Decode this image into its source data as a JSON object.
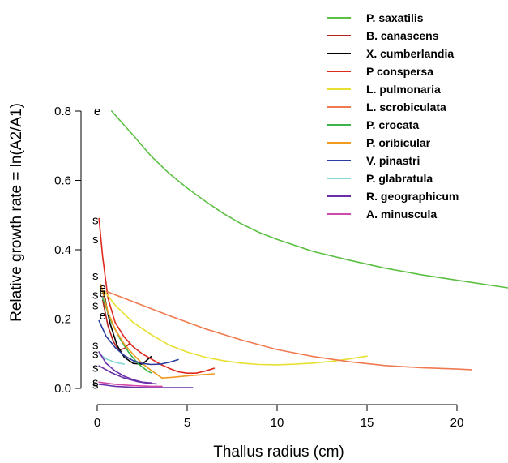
{
  "chart_data": {
    "type": "line",
    "xlabel": "Thallus radius (cm)",
    "ylabel": "Relative growth rate = ln(A2/A1)",
    "xlim": [
      0,
      23
    ],
    "ylim": [
      0,
      0.8
    ],
    "x_ticks": [
      "0",
      "5",
      "10",
      "15",
      "20"
    ],
    "y_ticks": [
      "0.0",
      "0.2",
      "0.4",
      "0.6",
      "0.8"
    ],
    "legend_position": "top-right",
    "grid": false,
    "series": [
      {
        "name": "P. saxatilis",
        "color": "#5cc043",
        "x": [
          0.8,
          2,
          3,
          4,
          5,
          6,
          7,
          8,
          9,
          10,
          12,
          14,
          16,
          18,
          20,
          23
        ],
        "y": [
          0.8,
          0.73,
          0.67,
          0.62,
          0.578,
          0.54,
          0.505,
          0.475,
          0.45,
          0.43,
          0.395,
          0.37,
          0.347,
          0.328,
          0.312,
          0.29
        ]
      },
      {
        "name": "B. canascens",
        "color": "#b22222",
        "x": [
          0.3,
          0.6,
          0.9,
          1.2,
          1.5,
          1.8
        ],
        "y": [
          0.255,
          0.18,
          0.135,
          0.11,
          0.115,
          0.13
        ]
      },
      {
        "name": "X. cumberlandia",
        "color": "#000000",
        "x": [
          0.35,
          0.7,
          1.1,
          1.5,
          2.0,
          2.5,
          3.0
        ],
        "y": [
          0.28,
          0.19,
          0.125,
          0.09,
          0.072,
          0.07,
          0.092
        ]
      },
      {
        "name": "P conspersa",
        "color": "#dd2a1e",
        "x": [
          0.1,
          0.3,
          0.6,
          1.0,
          1.5,
          2.0,
          2.5,
          3.0,
          3.5,
          4.0,
          4.5,
          5.0,
          5.5,
          6.0,
          6.5
        ],
        "y": [
          0.49,
          0.38,
          0.26,
          0.19,
          0.148,
          0.12,
          0.1,
          0.085,
          0.07,
          0.058,
          0.048,
          0.044,
          0.044,
          0.05,
          0.058
        ]
      },
      {
        "name": "L. pulmonaria",
        "color": "#e8e030",
        "x": [
          0.4,
          1,
          2,
          3,
          4,
          5,
          6,
          7,
          8,
          9,
          10,
          11,
          12,
          13,
          14,
          15
        ],
        "y": [
          0.28,
          0.24,
          0.19,
          0.155,
          0.125,
          0.105,
          0.09,
          0.08,
          0.073,
          0.069,
          0.068,
          0.07,
          0.073,
          0.078,
          0.085,
          0.093
        ]
      },
      {
        "name": "L. scrobiculata",
        "color": "#f07a50",
        "x": [
          0.5,
          2,
          4,
          6,
          8,
          10,
          12,
          14,
          16,
          18,
          20,
          20.8
        ],
        "y": [
          0.28,
          0.25,
          0.21,
          0.172,
          0.14,
          0.112,
          0.092,
          0.077,
          0.066,
          0.06,
          0.056,
          0.054
        ]
      },
      {
        "name": "P. crocata",
        "color": "#3cb44b",
        "x": [
          0.3,
          0.8,
          1.3,
          1.8,
          2.3,
          2.8,
          3.0
        ],
        "y": [
          0.26,
          0.19,
          0.14,
          0.1,
          0.07,
          0.05,
          0.045
        ]
      },
      {
        "name": "P. oribicular",
        "color": "#f29a1f",
        "x": [
          0.2,
          0.6,
          1.0,
          1.5,
          2.0,
          2.5,
          3.0,
          3.6,
          4.2,
          5.0,
          6.5
        ],
        "y": [
          0.3,
          0.22,
          0.17,
          0.128,
          0.098,
          0.072,
          0.052,
          0.03,
          0.032,
          0.036,
          0.042
        ]
      },
      {
        "name": "V. pinastri",
        "color": "#2b3d9e",
        "x": [
          0.1,
          0.5,
          1.0,
          1.5,
          2.0,
          2.5,
          3.0,
          3.5,
          4.0,
          4.5
        ],
        "y": [
          0.195,
          0.15,
          0.118,
          0.095,
          0.08,
          0.072,
          0.069,
          0.07,
          0.075,
          0.083
        ]
      },
      {
        "name": "P. glabratula",
        "color": "#80d8d0",
        "x": [
          0.1,
          0.5,
          1.0,
          1.5
        ],
        "y": [
          0.1,
          0.085,
          0.075,
          0.07
        ]
      },
      {
        "name": "R. geographicum",
        "color": "#6a2ea8",
        "x": [
          0.1,
          0.5,
          1.0,
          1.5,
          2.0,
          2.5,
          3.0
        ],
        "y": [
          0.105,
          0.072,
          0.05,
          0.035,
          0.025,
          0.018,
          0.016
        ]
      },
      {
        "name": "R. geographicum",
        "color": "#6a2ea8",
        "legend": false,
        "x": [
          0.1,
          0.8,
          1.5,
          2.2,
          2.8,
          3.3
        ],
        "y": [
          0.065,
          0.045,
          0.03,
          0.02,
          0.015,
          0.013
        ]
      },
      {
        "name": "R. geographicum",
        "color": "#6a2ea8",
        "legend": false,
        "x": [
          0.1,
          1.0,
          2.0,
          3.0,
          4.0,
          5.3
        ],
        "y": [
          0.012,
          0.006,
          0.003,
          0.002,
          0.002,
          0.002
        ]
      },
      {
        "name": "A. minuscula",
        "color": "#d048a8",
        "x": [
          0.1,
          1.0,
          2.0,
          3.0,
          3.6
        ],
        "y": [
          0.018,
          0.012,
          0.008,
          0.006,
          0.006
        ]
      }
    ],
    "markers": [
      {
        "label": "e",
        "x": 0.0,
        "y": 0.8
      },
      {
        "label": "s",
        "x": -0.1,
        "y": 0.485
      },
      {
        "label": "s",
        "x": -0.1,
        "y": 0.43
      },
      {
        "label": "s",
        "x": -0.1,
        "y": 0.325
      },
      {
        "label": "s",
        "x": -0.1,
        "y": 0.27
      },
      {
        "label": "e",
        "x": 0.3,
        "y": 0.29
      },
      {
        "label": "e",
        "x": 0.3,
        "y": 0.275
      },
      {
        "label": "s",
        "x": -0.1,
        "y": 0.24
      },
      {
        "label": "e",
        "x": 0.3,
        "y": 0.21
      },
      {
        "label": "s",
        "x": -0.1,
        "y": 0.125
      },
      {
        "label": "s",
        "x": -0.1,
        "y": 0.1
      },
      {
        "label": "s",
        "x": -0.1,
        "y": 0.06
      },
      {
        "label": "s",
        "x": -0.1,
        "y": 0.018
      },
      {
        "label": "s",
        "x": -0.1,
        "y": 0.01
      }
    ]
  }
}
